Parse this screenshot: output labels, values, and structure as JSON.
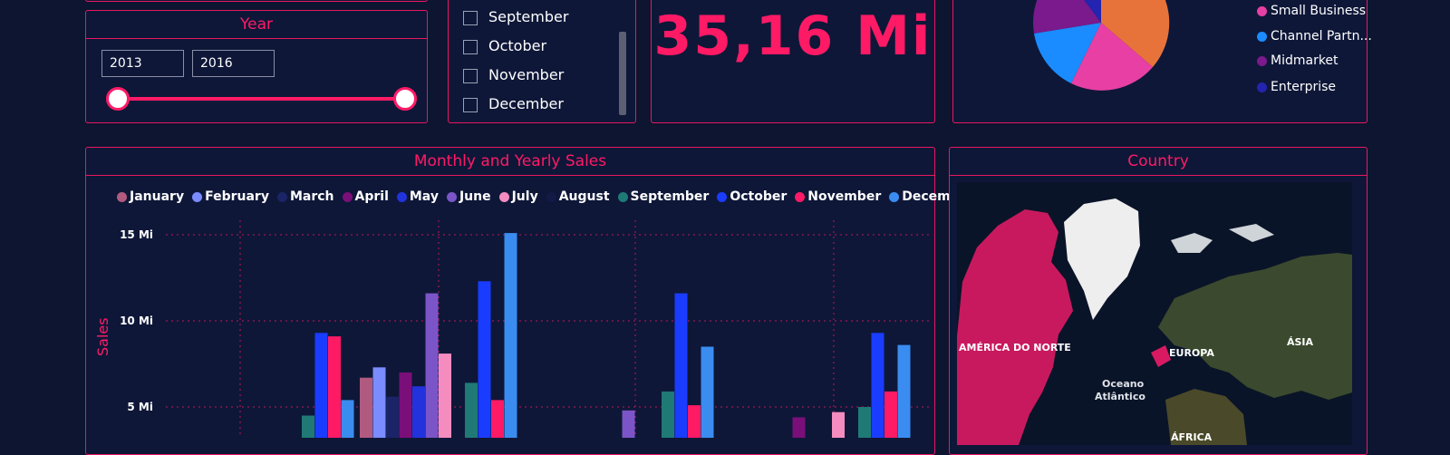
{
  "year_slicer": {
    "title": "Year",
    "start": "2013",
    "end": "2016",
    "range_fraction": [
      0,
      1
    ]
  },
  "month_slicer": {
    "items": [
      "September",
      "October",
      "November",
      "December"
    ]
  },
  "kpi": {
    "value": "35,16 Mi"
  },
  "segment_pie": {
    "legend": [
      "Small Business",
      "Channel Partn...",
      "Midmarket",
      "Enterprise"
    ],
    "colors": {
      "government": "#e8733a",
      "small_business": "#e83fa4",
      "channel_partners": "#1a8cff",
      "midmarket": "#7a1a8c",
      "enterprise": "#2424b0"
    }
  },
  "chart_data": {
    "type": "bar",
    "title": "Monthly and Yearly Sales",
    "ylabel": "Sales",
    "ylim": [
      0,
      15
    ],
    "yticks": [
      "5 Mi",
      "10 Mi",
      "15 Mi"
    ],
    "legend_position": "top",
    "grid": true,
    "series": [
      {
        "name": "January",
        "color": "#b05a80"
      },
      {
        "name": "February",
        "color": "#7a8cff"
      },
      {
        "name": "March",
        "color": "#1a2466"
      },
      {
        "name": "April",
        "color": "#7a0f7a"
      },
      {
        "name": "May",
        "color": "#2233dd"
      },
      {
        "name": "June",
        "color": "#7b55c8"
      },
      {
        "name": "July",
        "color": "#f48cc0"
      },
      {
        "name": "August",
        "color": "#131a45"
      },
      {
        "name": "September",
        "color": "#1f7a75"
      },
      {
        "name": "October",
        "color": "#1a3cff"
      },
      {
        "name": "November",
        "color": "#ff1a66"
      },
      {
        "name": "December",
        "color": "#3a8cf0"
      }
    ],
    "visible_bars": [
      {
        "group": 1,
        "series": "September",
        "value": 4.5
      },
      {
        "group": 1,
        "series": "October",
        "value": 9.3
      },
      {
        "group": 1,
        "series": "November",
        "value": 9.1
      },
      {
        "group": 1,
        "series": "December",
        "value": 5.4
      },
      {
        "group": 2,
        "series": "January",
        "value": 6.7
      },
      {
        "group": 2,
        "series": "February",
        "value": 7.3
      },
      {
        "group": 2,
        "series": "March",
        "value": 5.6
      },
      {
        "group": 2,
        "series": "April",
        "value": 7.0
      },
      {
        "group": 2,
        "series": "May",
        "value": 6.2
      },
      {
        "group": 2,
        "series": "June",
        "value": 11.6
      },
      {
        "group": 2,
        "series": "July",
        "value": 8.1
      },
      {
        "group": 2,
        "series": "September",
        "value": 6.4
      },
      {
        "group": 2,
        "series": "October",
        "value": 12.3
      },
      {
        "group": 2,
        "series": "November",
        "value": 5.4
      },
      {
        "group": 2,
        "series": "December",
        "value": 15.1
      },
      {
        "group": 3,
        "series": "June",
        "value": 4.8
      },
      {
        "group": 3,
        "series": "September",
        "value": 5.9
      },
      {
        "group": 3,
        "series": "October",
        "value": 11.6
      },
      {
        "group": 3,
        "series": "November",
        "value": 5.1
      },
      {
        "group": 3,
        "series": "December",
        "value": 8.5
      },
      {
        "group": 4,
        "series": "April",
        "value": 4.4
      },
      {
        "group": 4,
        "series": "July",
        "value": 4.7
      },
      {
        "group": 4,
        "series": "September",
        "value": 5.0
      },
      {
        "group": 4,
        "series": "October",
        "value": 9.3
      },
      {
        "group": 4,
        "series": "November",
        "value": 5.9
      },
      {
        "group": 4,
        "series": "December",
        "value": 8.6
      }
    ]
  },
  "map": {
    "title": "Country",
    "labels": {
      "north_america": "AMÉRICA DO NORTE",
      "europe": "EUROPA",
      "asia": "ÁSIA",
      "ocean_line1": "Oceano",
      "ocean_line2": "Atlântico",
      "africa": "ÁFRICA"
    },
    "highlight_color": "#d91a63"
  }
}
